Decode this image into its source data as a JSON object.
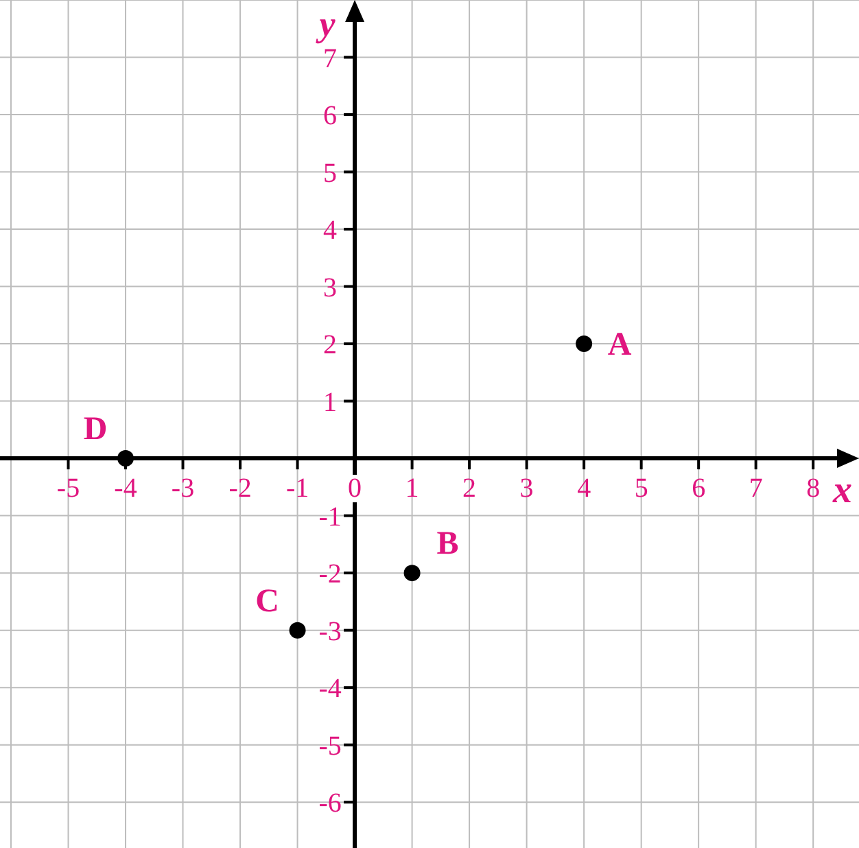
{
  "chart_data": {
    "type": "scatter",
    "xlabel": "x",
    "ylabel": "y",
    "x": [
      4,
      1,
      -1,
      -4
    ],
    "series": [
      {
        "color": "#000000",
        "values": [
          2,
          -2,
          -3,
          0
        ]
      }
    ],
    "xlim": [
      -6,
      8.8
    ],
    "ylim": [
      -6.8,
      8
    ],
    "xticks": [
      -5,
      -4,
      -3,
      -2,
      -1,
      0,
      1,
      2,
      3,
      4,
      5,
      6,
      7,
      8
    ],
    "yticks": [
      -6,
      -5,
      -4,
      -3,
      -2,
      -1,
      1,
      2,
      3,
      4,
      5,
      6,
      7
    ],
    "grid": true,
    "marker": "circle",
    "annotations": [
      {
        "text": "A",
        "x": 4,
        "y": 2
      },
      {
        "text": "B",
        "x": 1,
        "y": -2
      },
      {
        "text": "C",
        "x": -1,
        "y": -3
      },
      {
        "text": "D",
        "x": -4,
        "y": 0
      }
    ]
  }
}
